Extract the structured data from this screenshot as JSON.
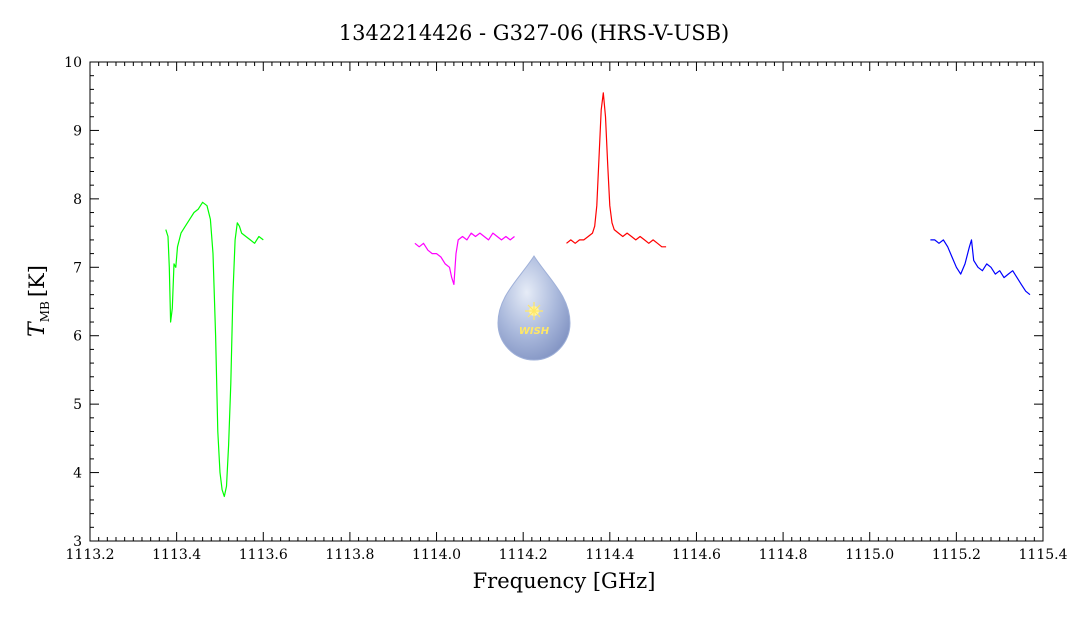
{
  "chart_data": {
    "type": "line",
    "title": "1342214426 - G327-06 (HRS-V-USB)",
    "xlabel": "Frequency [GHz]",
    "ylabel": "T",
    "ylabel_subscript": "MB",
    "ylabel_unit": "[K]",
    "xlim": [
      1113.2,
      1115.4
    ],
    "ylim": [
      3,
      10
    ],
    "x_ticks": [
      "1113.2",
      "1113.4",
      "1113.6",
      "1113.8",
      "1114.0",
      "1114.2",
      "1114.4",
      "1114.6",
      "1114.8",
      "1115.0",
      "1115.2",
      "1115.4"
    ],
    "y_ticks": [
      "3",
      "4",
      "5",
      "6",
      "7",
      "8",
      "9",
      "10"
    ],
    "grid": false,
    "logo_text": "WISH",
    "series": [
      {
        "color": "#00ff00",
        "x": [
          1113.375,
          1113.38,
          1113.383,
          1113.386,
          1113.39,
          1113.394,
          1113.398,
          1113.402,
          1113.41,
          1113.42,
          1113.43,
          1113.44,
          1113.45,
          1113.46,
          1113.47,
          1113.478,
          1113.484,
          1113.49,
          1113.495,
          1113.5,
          1113.505,
          1113.51,
          1113.515,
          1113.52,
          1113.525,
          1113.53,
          1113.535,
          1113.54,
          1113.545,
          1113.55,
          1113.56,
          1113.57,
          1113.58,
          1113.59,
          1113.6
        ],
        "y": [
          7.55,
          7.45,
          7.0,
          6.2,
          6.4,
          7.05,
          7.0,
          7.3,
          7.5,
          7.6,
          7.7,
          7.8,
          7.85,
          7.95,
          7.9,
          7.7,
          7.2,
          6.0,
          4.6,
          4.0,
          3.75,
          3.65,
          3.8,
          4.4,
          5.3,
          6.6,
          7.4,
          7.65,
          7.6,
          7.5,
          7.45,
          7.4,
          7.35,
          7.45,
          7.4
        ]
      },
      {
        "color": "#ff00ff",
        "x": [
          1113.95,
          1113.96,
          1113.97,
          1113.98,
          1113.99,
          1114.0,
          1114.01,
          1114.02,
          1114.03,
          1114.035,
          1114.04,
          1114.045,
          1114.05,
          1114.06,
          1114.07,
          1114.08,
          1114.09,
          1114.1,
          1114.11,
          1114.12,
          1114.13,
          1114.14,
          1114.15,
          1114.16,
          1114.17,
          1114.18
        ],
        "y": [
          7.35,
          7.3,
          7.35,
          7.25,
          7.2,
          7.2,
          7.15,
          7.05,
          7.0,
          6.85,
          6.75,
          7.2,
          7.4,
          7.45,
          7.4,
          7.5,
          7.45,
          7.5,
          7.45,
          7.4,
          7.5,
          7.45,
          7.4,
          7.45,
          7.4,
          7.45
        ]
      },
      {
        "color": "#ff0000",
        "x": [
          1114.3,
          1114.31,
          1114.32,
          1114.33,
          1114.34,
          1114.35,
          1114.36,
          1114.365,
          1114.37,
          1114.375,
          1114.38,
          1114.385,
          1114.39,
          1114.395,
          1114.4,
          1114.405,
          1114.41,
          1114.42,
          1114.43,
          1114.44,
          1114.45,
          1114.46,
          1114.47,
          1114.48,
          1114.49,
          1114.5,
          1114.51,
          1114.52,
          1114.53
        ],
        "y": [
          7.35,
          7.4,
          7.35,
          7.4,
          7.4,
          7.45,
          7.5,
          7.6,
          7.9,
          8.6,
          9.3,
          9.55,
          9.2,
          8.5,
          7.9,
          7.65,
          7.55,
          7.5,
          7.45,
          7.5,
          7.45,
          7.4,
          7.45,
          7.4,
          7.35,
          7.4,
          7.35,
          7.3,
          7.3
        ]
      },
      {
        "color": "#0000ff",
        "x": [
          1115.14,
          1115.15,
          1115.16,
          1115.17,
          1115.18,
          1115.19,
          1115.2,
          1115.21,
          1115.22,
          1115.23,
          1115.235,
          1115.24,
          1115.25,
          1115.26,
          1115.27,
          1115.28,
          1115.29,
          1115.3,
          1115.31,
          1115.32,
          1115.33,
          1115.34,
          1115.35,
          1115.36,
          1115.37
        ],
        "y": [
          7.4,
          7.4,
          7.35,
          7.4,
          7.3,
          7.15,
          7.0,
          6.9,
          7.05,
          7.3,
          7.4,
          7.1,
          7.0,
          6.95,
          7.05,
          7.0,
          6.9,
          6.95,
          6.85,
          6.9,
          6.95,
          6.85,
          6.75,
          6.65,
          6.6
        ]
      }
    ]
  }
}
